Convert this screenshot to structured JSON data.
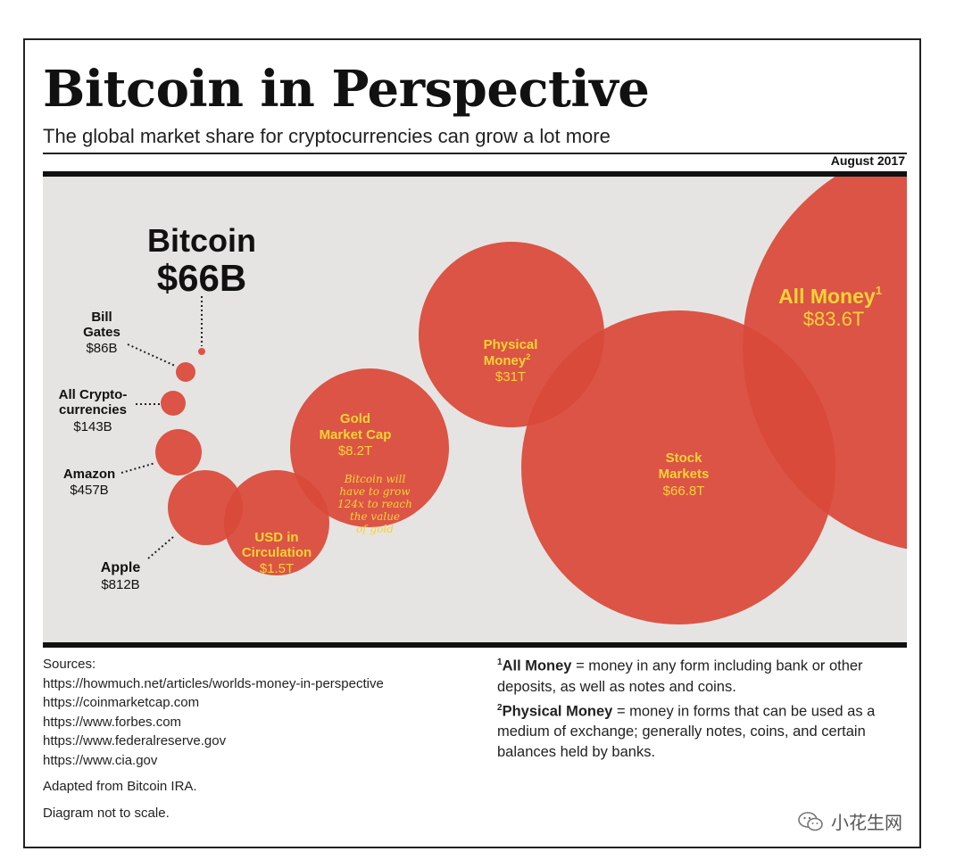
{
  "header": {
    "title": "Bitcoin in Perspective",
    "subtitle": "The global market share for cryptocurrencies can grow a lot more",
    "date": "August 2017"
  },
  "colors": {
    "bubble": "#d9493a",
    "background": "#e6e4e2",
    "label": "#f5d335"
  },
  "bubbles": [
    {
      "id": "bitcoin",
      "name": "Bitcoin",
      "value": "$66B"
    },
    {
      "id": "bill-gates",
      "name_lines": [
        "Bill",
        "Gates"
      ],
      "value": "$86B"
    },
    {
      "id": "all-crypto",
      "name_lines": [
        "All Crypto-",
        "currencies"
      ],
      "value": "$143B"
    },
    {
      "id": "amazon",
      "name": "Amazon",
      "value": "$457B"
    },
    {
      "id": "apple",
      "name": "Apple",
      "value": "$812B"
    },
    {
      "id": "usd",
      "name_lines": [
        "USD in",
        "Circulation"
      ],
      "value": "$1.5T"
    },
    {
      "id": "gold",
      "name_lines": [
        "Gold",
        "Market Cap"
      ],
      "value": "$8.2T",
      "note_lines": [
        "Bitcoin will",
        "have to grow",
        "124x to reach",
        "the value",
        "of gold"
      ]
    },
    {
      "id": "physical-money",
      "name_lines": [
        "Physical",
        "Money"
      ],
      "sup": "2",
      "value": "$31T"
    },
    {
      "id": "stock-markets",
      "name_lines": [
        "Stock",
        "Markets"
      ],
      "value": "$66.8T"
    },
    {
      "id": "all-money",
      "name": "All Money",
      "sup": "1",
      "value": "$83.6T"
    }
  ],
  "sources": {
    "heading": "Sources:",
    "links": [
      "https://howmuch.net/articles/worlds-money-in-perspective",
      "https://coinmarketcap.com",
      "https://www.forbes.com",
      "https://www.federalreserve.gov",
      "https://www.cia.gov"
    ],
    "adapted": "Adapted from Bitcoin IRA.",
    "disclaimer": "Diagram not to scale."
  },
  "footnotes": [
    {
      "num": "1",
      "term": "All Money",
      "text": " = money in any form including bank or other deposits, as well as notes and coins."
    },
    {
      "num": "2",
      "term": "Physical Money",
      "text": " = money in forms that can be used as a medium of exchange; generally notes, coins, and certain balances held by banks."
    }
  ],
  "watermark": {
    "text": "小花生网",
    "icon": "wechat-icon"
  }
}
